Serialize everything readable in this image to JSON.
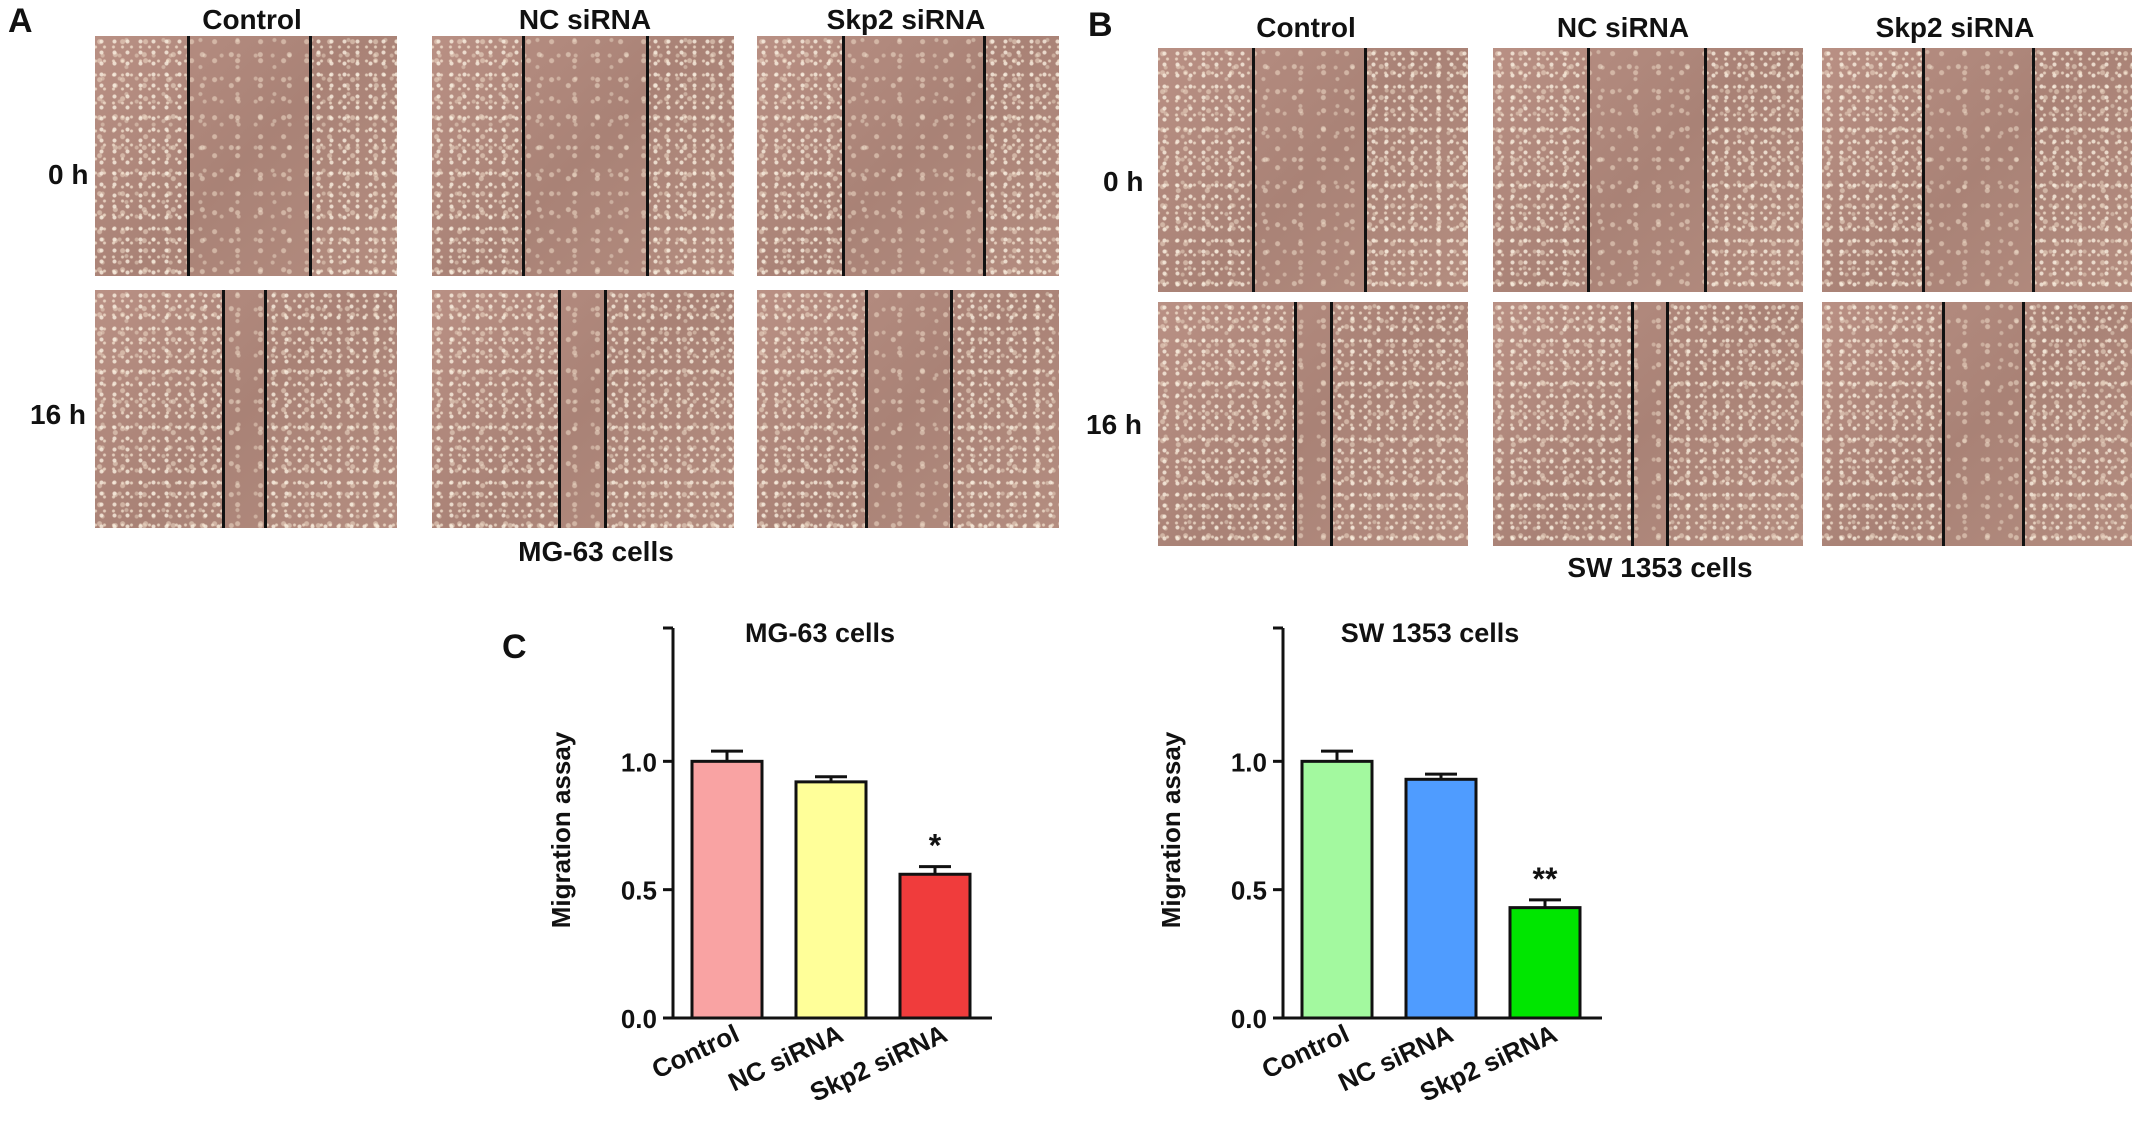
{
  "panels": {
    "A": {
      "letter": "A",
      "columns": [
        "Control",
        "NC siRNA",
        "Skp2 siRNA"
      ],
      "rows": [
        "0 h",
        "16 h"
      ],
      "caption": "MG-63 cells"
    },
    "B": {
      "letter": "B",
      "columns": [
        "Control",
        "NC siRNA",
        "Skp2 siRNA"
      ],
      "rows": [
        "0 h",
        "16 h"
      ],
      "caption": "SW  1353 cells"
    },
    "C": {
      "letter": "C"
    }
  },
  "chart_data": [
    {
      "type": "bar",
      "title": "MG-63 cells",
      "ylabel": "Migration assay",
      "xlabel": "",
      "categories": [
        "Control",
        "NC siRNA",
        "Skp2 siRNA"
      ],
      "values": [
        1.0,
        0.92,
        0.56
      ],
      "errors": [
        0.04,
        0.02,
        0.03
      ],
      "annotations": [
        "",
        "",
        "*"
      ],
      "colors": [
        "#f9a3a3",
        "#ffff99",
        "#f03c3c"
      ],
      "yticks": [
        "0.0",
        "0.5",
        "1.0"
      ],
      "ylim": [
        0,
        1.5
      ],
      "grid": false
    },
    {
      "type": "bar",
      "title": "SW  1353 cells",
      "ylabel": "Migration assay",
      "xlabel": "",
      "categories": [
        "Control",
        "NC siRNA",
        "Skp2 siRNA"
      ],
      "values": [
        1.0,
        0.93,
        0.43
      ],
      "errors": [
        0.04,
        0.02,
        0.03
      ],
      "annotations": [
        "",
        "",
        "**"
      ],
      "colors": [
        "#a3f99f",
        "#4f9cff",
        "#00e600"
      ],
      "yticks": [
        "0.0",
        "0.5",
        "1.0"
      ],
      "ylim": [
        0,
        1.5
      ],
      "grid": false
    }
  ]
}
